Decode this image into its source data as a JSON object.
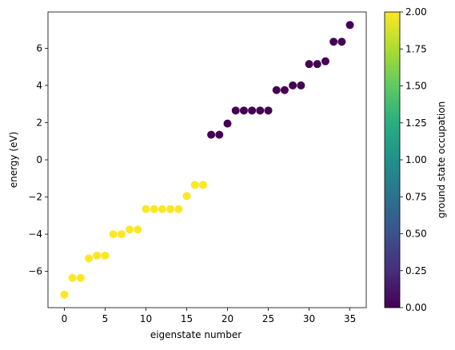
{
  "chart_data": {
    "type": "scatter",
    "xlabel": "eigenstate number",
    "ylabel": "energy (eV)",
    "xlim": [
      -2.0,
      37.0
    ],
    "ylim": [
      -7.95,
      7.95
    ],
    "x_ticks": [
      0,
      5,
      10,
      15,
      20,
      25,
      30,
      35
    ],
    "y_ticks": [
      -6,
      -4,
      -2,
      0,
      2,
      4,
      6
    ],
    "grid": false,
    "points": [
      {
        "x": 0,
        "y": -7.25,
        "c": 2.0
      },
      {
        "x": 1,
        "y": -6.35,
        "c": 2.0
      },
      {
        "x": 2,
        "y": -6.35,
        "c": 2.0
      },
      {
        "x": 3,
        "y": -5.3,
        "c": 2.0
      },
      {
        "x": 4,
        "y": -5.15,
        "c": 2.0
      },
      {
        "x": 5,
        "y": -5.15,
        "c": 2.0
      },
      {
        "x": 6,
        "y": -4.0,
        "c": 2.0
      },
      {
        "x": 7,
        "y": -4.0,
        "c": 2.0
      },
      {
        "x": 8,
        "y": -3.75,
        "c": 2.0
      },
      {
        "x": 9,
        "y": -3.75,
        "c": 2.0
      },
      {
        "x": 10,
        "y": -2.65,
        "c": 2.0
      },
      {
        "x": 11,
        "y": -2.65,
        "c": 2.0
      },
      {
        "x": 12,
        "y": -2.65,
        "c": 2.0
      },
      {
        "x": 13,
        "y": -2.65,
        "c": 2.0
      },
      {
        "x": 14,
        "y": -2.65,
        "c": 2.0
      },
      {
        "x": 15,
        "y": -1.95,
        "c": 2.0
      },
      {
        "x": 16,
        "y": -1.35,
        "c": 2.0
      },
      {
        "x": 17,
        "y": -1.35,
        "c": 2.0
      },
      {
        "x": 18,
        "y": 1.35,
        "c": 0.0
      },
      {
        "x": 19,
        "y": 1.35,
        "c": 0.0
      },
      {
        "x": 20,
        "y": 1.95,
        "c": 0.0
      },
      {
        "x": 21,
        "y": 2.65,
        "c": 0.0
      },
      {
        "x": 22,
        "y": 2.65,
        "c": 0.0
      },
      {
        "x": 23,
        "y": 2.65,
        "c": 0.0
      },
      {
        "x": 24,
        "y": 2.65,
        "c": 0.0
      },
      {
        "x": 25,
        "y": 2.65,
        "c": 0.0
      },
      {
        "x": 26,
        "y": 3.75,
        "c": 0.0
      },
      {
        "x": 27,
        "y": 3.75,
        "c": 0.0
      },
      {
        "x": 28,
        "y": 4.0,
        "c": 0.0
      },
      {
        "x": 29,
        "y": 4.0,
        "c": 0.0
      },
      {
        "x": 30,
        "y": 5.15,
        "c": 0.0
      },
      {
        "x": 31,
        "y": 5.15,
        "c": 0.0
      },
      {
        "x": 32,
        "y": 5.3,
        "c": 0.0
      },
      {
        "x": 33,
        "y": 6.35,
        "c": 0.0
      },
      {
        "x": 34,
        "y": 6.35,
        "c": 0.0
      },
      {
        "x": 35,
        "y": 7.25,
        "c": 0.0
      }
    ],
    "colorbar": {
      "label": "ground state occupation",
      "range": [
        0.0,
        2.0
      ],
      "colormap": "viridis",
      "ticks": [
        "0.00",
        "0.25",
        "0.50",
        "0.75",
        "1.00",
        "1.25",
        "1.50",
        "1.75",
        "2.00"
      ]
    },
    "colors": {
      "low": "#440154",
      "high": "#fde725"
    }
  }
}
